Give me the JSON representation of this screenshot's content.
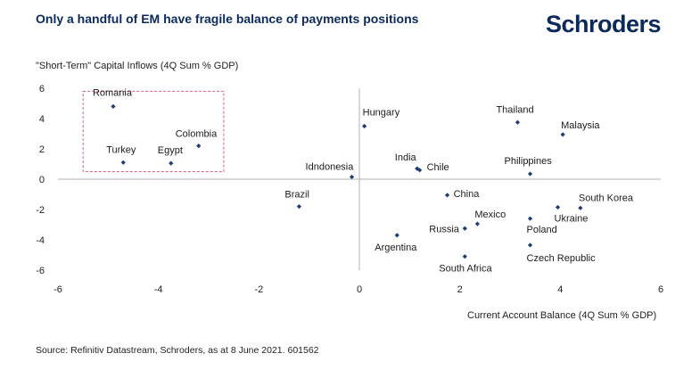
{
  "header": {
    "title": "Only a handful of EM have fragile balance of payments positions",
    "brand": "Schroders"
  },
  "footer": {
    "source": "Source: Refinitiv Datastream, Schroders, as at 8 June 2021. 601562"
  },
  "colors": {
    "title": "#0b2a5b",
    "points": "#1f3c74",
    "highlight_box": "#d9607a",
    "axis": "#b0b0b0"
  },
  "chart_data": {
    "type": "scatter",
    "xlabel": "Current Account Balance (4Q Sum % GDP)",
    "ylabel": "\"Short-Term\" Capital Inflows (4Q Sum % GDP)",
    "xlim": [
      -6,
      6
    ],
    "ylim": [
      -6,
      6
    ],
    "xticks": [
      "-6",
      "-4",
      "-2",
      "0",
      "2",
      "4",
      "6"
    ],
    "yticks": [
      "6",
      "4",
      "2",
      "0",
      "-2",
      "-4",
      "-6"
    ],
    "grid": false,
    "highlight_box": {
      "x": [
        -5.5,
        -2.7
      ],
      "y": [
        0.5,
        5.8
      ],
      "style": "dashed"
    },
    "points": [
      {
        "label": "Romania",
        "x": -4.9,
        "y": 4.8
      },
      {
        "label": "Colombia",
        "x": -3.2,
        "y": 2.2
      },
      {
        "label": "Turkey",
        "x": -4.7,
        "y": 1.1
      },
      {
        "label": "Egypt",
        "x": -3.75,
        "y": 1.05
      },
      {
        "label": "Hungary",
        "x": 0.1,
        "y": 3.5
      },
      {
        "label": "Thailand",
        "x": 3.15,
        "y": 3.75
      },
      {
        "label": "Malaysia",
        "x": 4.05,
        "y": 2.95
      },
      {
        "label": "Idndonesia",
        "x": -0.15,
        "y": 0.15
      },
      {
        "label": "India",
        "x": 1.15,
        "y": 0.7
      },
      {
        "label": "Chile",
        "x": 1.2,
        "y": 0.6
      },
      {
        "label": "Philippines",
        "x": 3.4,
        "y": 0.35
      },
      {
        "label": "Brazil",
        "x": -1.2,
        "y": -1.8
      },
      {
        "label": "China",
        "x": 1.75,
        "y": -1.05
      },
      {
        "label": "South Korea",
        "x": 4.4,
        "y": -1.9
      },
      {
        "label": "Ukraine",
        "x": 3.95,
        "y": -1.85
      },
      {
        "label": "Mexico",
        "x": 2.35,
        "y": -2.95
      },
      {
        "label": "Russia",
        "x": 2.1,
        "y": -3.25
      },
      {
        "label": "Poland",
        "x": 3.4,
        "y": -2.6
      },
      {
        "label": "Argentina",
        "x": 0.75,
        "y": -3.7
      },
      {
        "label": "Czech Republic",
        "x": 3.4,
        "y": -4.35
      },
      {
        "label": "South Africa",
        "x": 2.1,
        "y": -5.1
      }
    ]
  }
}
